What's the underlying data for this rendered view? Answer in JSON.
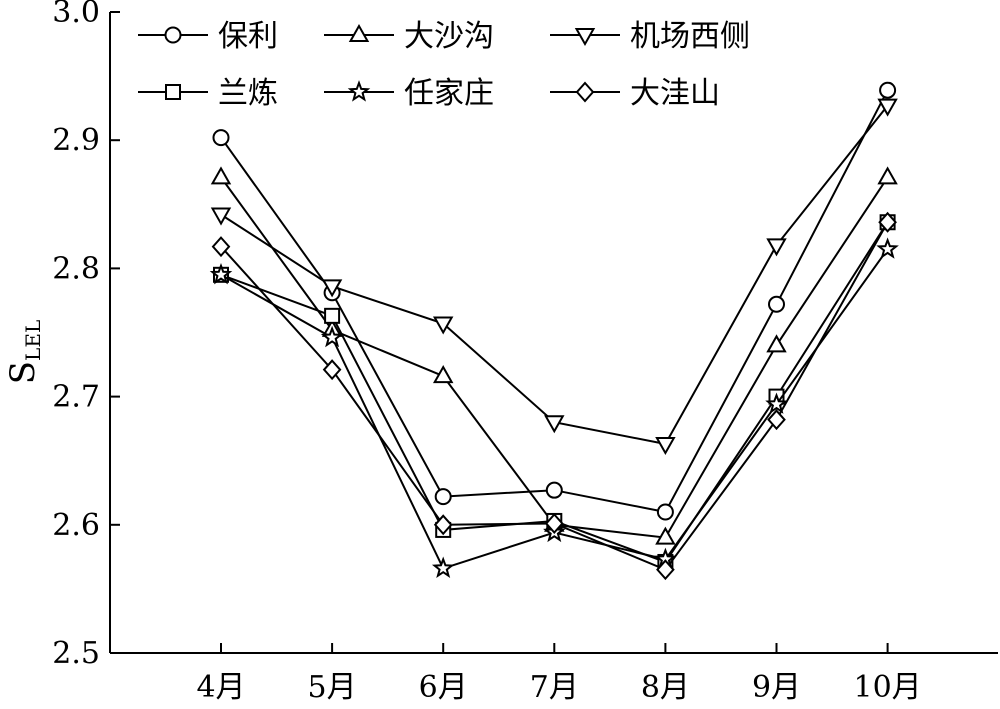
{
  "chart_data": {
    "type": "line",
    "ylabel": "S",
    "ylabel_subscript": "LEL",
    "xlabel": "",
    "categories": [
      "4月",
      "5月",
      "6月",
      "7月",
      "8月",
      "9月",
      "10月"
    ],
    "ylim": [
      2.5,
      3.0
    ],
    "yticks": [
      "2.5",
      "2.6",
      "2.7",
      "2.8",
      "2.9",
      "3.0"
    ],
    "grid": false,
    "legend_position": "top-left",
    "series": [
      {
        "name": "保利",
        "marker": "circle",
        "values": [
          2.902,
          2.781,
          2.622,
          2.627,
          2.61,
          2.772,
          2.939
        ]
      },
      {
        "name": "大沙沟",
        "marker": "triangle-up",
        "values": [
          2.871,
          2.752,
          2.716,
          2.6,
          2.59,
          2.74,
          2.871
        ]
      },
      {
        "name": "机场西侧",
        "marker": "triangle-down",
        "values": [
          2.842,
          2.786,
          2.757,
          2.68,
          2.663,
          2.818,
          2.927
        ]
      },
      {
        "name": "兰炼",
        "marker": "square",
        "values": [
          2.795,
          2.763,
          2.596,
          2.603,
          2.571,
          2.7,
          2.836
        ]
      },
      {
        "name": "任家庄",
        "marker": "star",
        "values": [
          2.795,
          2.746,
          2.566,
          2.594,
          2.573,
          2.694,
          2.815
        ]
      },
      {
        "name": "大洼山",
        "marker": "diamond",
        "values": [
          2.817,
          2.721,
          2.6,
          2.601,
          2.565,
          2.682,
          2.836
        ]
      }
    ]
  }
}
